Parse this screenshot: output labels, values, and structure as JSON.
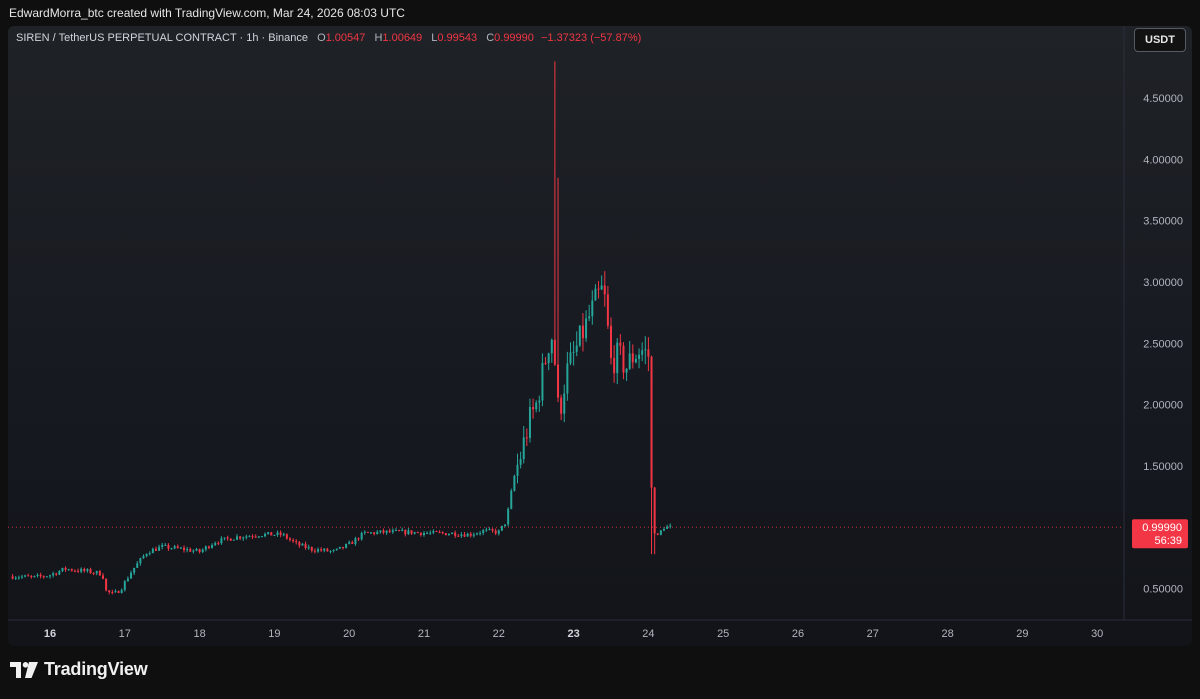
{
  "credit": "EdwardMorra_btc created with TradingView.com, Mar 24, 2026 08:03 UTC",
  "legend": {
    "symbol": "SIREN / TetherUS PERPETUAL CONTRACT · 1h · Binance",
    "o_label": "O",
    "o": "1.00547",
    "h_label": "H",
    "h": "1.00649",
    "l_label": "L",
    "l": "0.99543",
    "c_label": "C",
    "c": "0.99990",
    "change": "−1.37323 (−57.87%)"
  },
  "currency_button": "USDT",
  "brand": "TradingView",
  "colors": {
    "up": "#26a69a",
    "down": "#f23645",
    "axis_text": "#b2b5be",
    "price_tag": "#f23645"
  },
  "chart_data": {
    "type": "candlestick",
    "interval": "1h",
    "x_ticks": [
      "16",
      "17",
      "18",
      "19",
      "20",
      "21",
      "22",
      "23",
      "24",
      "25",
      "26",
      "27",
      "28",
      "29",
      "30"
    ],
    "y_ticks": [
      "4.50000",
      "4.00000",
      "3.50000",
      "3.00000",
      "2.50000",
      "2.00000",
      "1.50000",
      "0.50000"
    ],
    "ylim": [
      0.25,
      4.85
    ],
    "last_price": "0.99990",
    "countdown": "56:39",
    "price_path": [
      [
        "15.5",
        0.6
      ],
      [
        "15.8",
        0.59
      ],
      [
        "16.0",
        0.61
      ],
      [
        "16.2",
        0.66
      ],
      [
        "16.5",
        0.64
      ],
      [
        "16.7",
        0.62
      ],
      [
        "16.75",
        0.48
      ],
      [
        "16.85",
        0.45
      ],
      [
        "16.95",
        0.5
      ],
      [
        "17.1",
        0.65
      ],
      [
        "17.3",
        0.8
      ],
      [
        "17.5",
        0.84
      ],
      [
        "17.8",
        0.82
      ],
      [
        "18.0",
        0.8
      ],
      [
        "18.2",
        0.88
      ],
      [
        "18.5",
        0.92
      ],
      [
        "18.8",
        0.94
      ],
      [
        "19.1",
        0.94
      ],
      [
        "19.3",
        0.86
      ],
      [
        "19.5",
        0.82
      ],
      [
        "19.8",
        0.8
      ],
      [
        "20.0",
        0.86
      ],
      [
        "20.2",
        0.95
      ],
      [
        "20.5",
        0.96
      ],
      [
        "20.8",
        0.96
      ],
      [
        "21.1",
        0.95
      ],
      [
        "21.4",
        0.95
      ],
      [
        "21.6",
        0.94
      ],
      [
        "21.8",
        0.97
      ],
      [
        "22.0",
        0.96
      ],
      [
        "22.1",
        1.05
      ],
      [
        "22.2",
        1.4
      ],
      [
        "22.3",
        1.6
      ],
      [
        "22.4",
        1.85
      ],
      [
        "22.5",
        2.0
      ],
      [
        "22.6",
        2.3
      ],
      [
        "22.7",
        2.6
      ],
      [
        "22.75",
        2.35
      ],
      [
        "22.8",
        1.9
      ],
      [
        "22.9",
        2.25
      ],
      [
        "23.0",
        2.4
      ],
      [
        "23.1",
        2.55
      ],
      [
        "23.2",
        2.7
      ],
      [
        "23.3",
        2.85
      ],
      [
        "23.4",
        2.95
      ],
      [
        "23.5",
        2.35
      ],
      [
        "23.6",
        2.4
      ],
      [
        "23.7",
        2.3
      ],
      [
        "23.8",
        2.4
      ],
      [
        "23.9",
        2.45
      ],
      [
        "24.0",
        2.4
      ],
      [
        "24.05",
        1.1
      ],
      [
        "24.1",
        0.9
      ],
      [
        "24.2",
        1.0
      ],
      [
        "24.3",
        1.0
      ]
    ],
    "spike_high": 4.8
  }
}
